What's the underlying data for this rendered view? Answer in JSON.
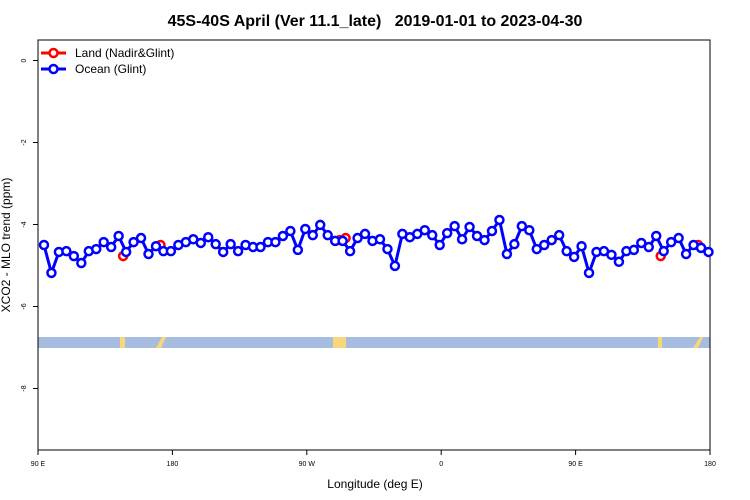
{
  "chart_data": {
    "type": "line",
    "title": "45S-40S April (Ver 11.1_late)   2019-01-01 to 2023-04-30",
    "x_label": "Longitude (deg E)",
    "y_label": "XCO2 - MLO trend (ppm)",
    "xlim": [
      90,
      540
    ],
    "ylim": [
      -9.5,
      0.5
    ],
    "xticks": [
      {
        "value": 90,
        "label": "90 E"
      },
      180,
      {
        "value": 270,
        "label": "90 W"
      },
      {
        "value": 360,
        "label": "0"
      },
      {
        "value": 450,
        "label": "90 E"
      },
      {
        "value": 540,
        "label": "180"
      }
    ],
    "yticks": [
      0,
      -2,
      -4,
      -6,
      -8
    ],
    "legend": "top-left",
    "series": [
      {
        "name": "Land (Nadir&Glint)",
        "color": "#ff0000",
        "x": [
          147,
          172,
          292,
          296,
          507,
          532
        ],
        "values": [
          -4.77,
          -4.5,
          -4.38,
          -4.33,
          -4.77,
          -4.5
        ]
      },
      {
        "name": "Ocean (Glint)",
        "color": "#0000ff",
        "x": [
          94,
          99,
          104,
          109,
          114,
          119,
          124,
          129,
          134,
          139,
          144,
          149,
          154,
          159,
          164,
          169,
          174,
          179,
          184,
          189,
          194,
          199,
          204,
          209,
          214,
          219,
          224,
          229,
          234,
          239,
          244,
          249,
          254,
          259,
          264,
          269,
          274,
          279,
          284,
          289,
          294,
          299,
          304,
          309,
          314,
          319,
          324,
          329,
          334,
          339,
          344,
          349,
          354,
          359,
          364,
          369,
          374,
          379,
          384,
          389,
          394,
          399,
          404,
          409,
          414,
          419,
          424,
          429,
          434,
          439,
          444,
          449,
          454,
          459,
          464,
          469,
          474,
          479,
          484,
          489,
          494,
          499,
          504,
          509,
          514,
          519,
          524,
          529,
          534,
          539
        ],
        "values": [
          -4.5,
          -5.18,
          -4.67,
          -4.65,
          -4.77,
          -4.94,
          -4.65,
          -4.6,
          -4.43,
          -4.55,
          -4.28,
          -4.67,
          -4.43,
          -4.33,
          -4.72,
          -4.53,
          -4.65,
          -4.65,
          -4.5,
          -4.43,
          -4.36,
          -4.45,
          -4.31,
          -4.48,
          -4.67,
          -4.48,
          -4.65,
          -4.5,
          -4.55,
          -4.55,
          -4.43,
          -4.43,
          -4.28,
          -4.16,
          -4.62,
          -4.11,
          -4.26,
          -4.01,
          -4.26,
          -4.4,
          -4.4,
          -4.65,
          -4.33,
          -4.23,
          -4.4,
          -4.36,
          -4.6,
          -5.01,
          -4.23,
          -4.31,
          -4.23,
          -4.14,
          -4.26,
          -4.5,
          -4.21,
          -4.04,
          -4.36,
          -4.06,
          -4.28,
          -4.38,
          -4.16,
          -3.89,
          -4.72,
          -4.48,
          -4.04,
          -4.14,
          -4.6,
          -4.5,
          -4.38,
          -4.26,
          -4.65,
          -4.79,
          -4.53,
          -5.18,
          -4.67,
          -4.65,
          -4.74,
          -4.91,
          -4.65,
          -4.62,
          -4.45,
          -4.55,
          -4.28,
          -4.65,
          -4.43,
          -4.33,
          -4.72,
          -4.5,
          -4.57,
          -4.67
        ]
      }
    ]
  }
}
